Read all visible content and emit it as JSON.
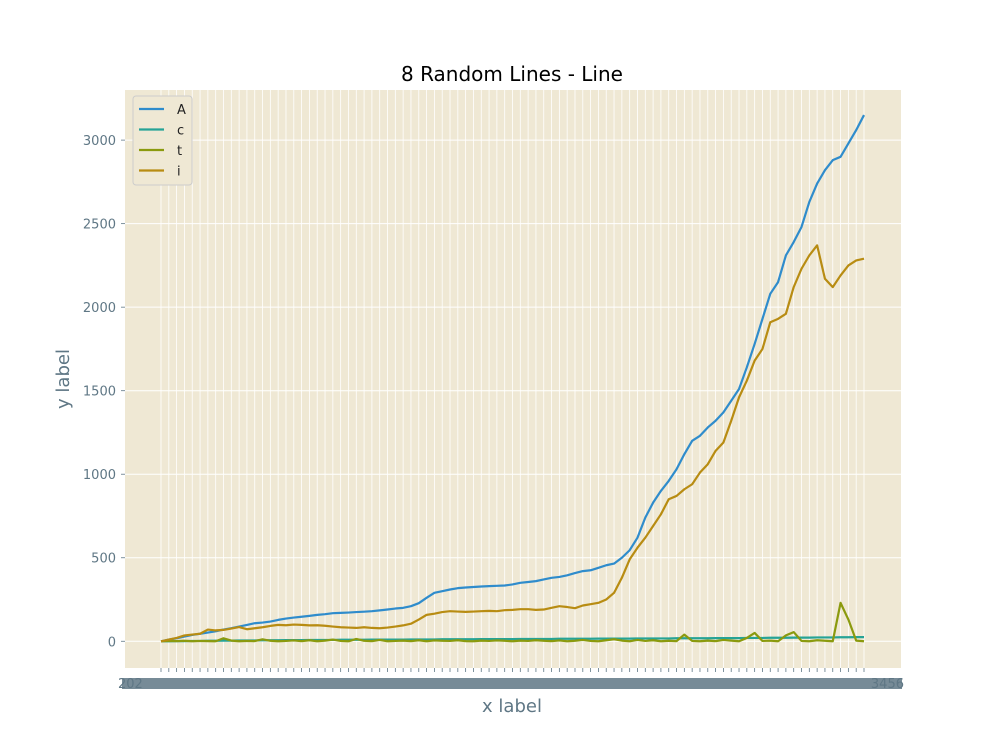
{
  "chart_data": {
    "type": "line",
    "title": "8 Random Lines - Line",
    "xlabel": "x label",
    "ylabel": "y label",
    "ylim": [
      -160,
      3300
    ],
    "yticks": [
      0,
      500,
      1000,
      1500,
      2000,
      2500,
      3000
    ],
    "x_tick_text": "2020-01-22 ... 2020-05-16 (dense, overlapping date labels)",
    "x_tick_text_visible_start": "202",
    "x_tick_text_visible_end": "3456",
    "grid": true,
    "legend_position": "upper-left",
    "background_color": "#efe8d4",
    "series": [
      {
        "name": "A",
        "color": "#2f8ccc",
        "values": [
          0,
          10,
          18,
          28,
          38,
          45,
          52,
          60,
          70,
          78,
          88,
          98,
          108,
          112,
          118,
          128,
          136,
          142,
          147,
          152,
          158,
          162,
          168,
          170,
          172,
          175,
          177,
          180,
          185,
          190,
          196,
          200,
          210,
          228,
          260,
          290,
          300,
          310,
          318,
          322,
          325,
          328,
          330,
          332,
          334,
          340,
          350,
          355,
          360,
          370,
          380,
          385,
          395,
          408,
          420,
          425,
          440,
          455,
          465,
          500,
          545,
          620,
          740,
          830,
          900,
          960,
          1030,
          1120,
          1200,
          1230,
          1280,
          1320,
          1370,
          1440,
          1510,
          1640,
          1780,
          1930,
          2080,
          2150,
          2310,
          2390,
          2480,
          2630,
          2740,
          2820,
          2880,
          2900,
          2980,
          3060,
          3150
        ]
      },
      {
        "name": "c",
        "color": "#26a396",
        "values": [
          0,
          0,
          1,
          1,
          2,
          2,
          3,
          3,
          4,
          4,
          5,
          5,
          5,
          6,
          6,
          6,
          7,
          7,
          7,
          8,
          8,
          8,
          8,
          9,
          9,
          9,
          9,
          10,
          10,
          10,
          10,
          10,
          11,
          11,
          11,
          11,
          12,
          12,
          12,
          12,
          12,
          13,
          13,
          13,
          13,
          13,
          14,
          14,
          14,
          14,
          14,
          15,
          15,
          15,
          15,
          15,
          16,
          16,
          16,
          16,
          16,
          17,
          17,
          17,
          17,
          17,
          18,
          18,
          18,
          18,
          18,
          19,
          19,
          19,
          19,
          20,
          20,
          20,
          21,
          21,
          21,
          22,
          22,
          22,
          23,
          23,
          23,
          24,
          24,
          25,
          25
        ]
      },
      {
        "name": "t",
        "color": "#8b9a0e",
        "values": [
          0,
          2,
          1,
          3,
          0,
          2,
          1,
          0,
          18,
          4,
          0,
          2,
          1,
          12,
          3,
          0,
          2,
          5,
          1,
          6,
          0,
          4,
          10,
          2,
          0,
          14,
          3,
          1,
          8,
          0,
          2,
          4,
          1,
          6,
          0,
          5,
          3,
          2,
          6,
          1,
          0,
          4,
          2,
          5,
          3,
          0,
          4,
          2,
          6,
          3,
          1,
          5,
          0,
          3,
          8,
          2,
          0,
          6,
          12,
          4,
          0,
          8,
          2,
          6,
          0,
          3,
          1,
          40,
          2,
          0,
          4,
          1,
          8,
          4,
          0,
          20,
          50,
          2,
          4,
          0,
          35,
          55,
          2,
          0,
          6,
          3,
          0,
          230,
          130,
          4,
          0
        ]
      },
      {
        "name": "i",
        "color": "#b88c12",
        "values": [
          0,
          10,
          20,
          35,
          40,
          45,
          70,
          65,
          68,
          76,
          85,
          72,
          78,
          84,
          92,
          98,
          96,
          100,
          98,
          95,
          96,
          93,
          88,
          84,
          82,
          80,
          84,
          80,
          78,
          82,
          88,
          95,
          105,
          130,
          158,
          165,
          175,
          180,
          178,
          176,
          178,
          180,
          182,
          180,
          186,
          188,
          192,
          192,
          188,
          190,
          200,
          210,
          205,
          198,
          214,
          222,
          230,
          250,
          290,
          380,
          490,
          560,
          620,
          690,
          760,
          850,
          870,
          910,
          940,
          1010,
          1060,
          1140,
          1190,
          1320,
          1460,
          1560,
          1680,
          1750,
          1910,
          1930,
          1960,
          2120,
          2230,
          2310,
          2370,
          2170,
          2120,
          2190,
          2250,
          2280,
          2290
        ]
      }
    ]
  }
}
